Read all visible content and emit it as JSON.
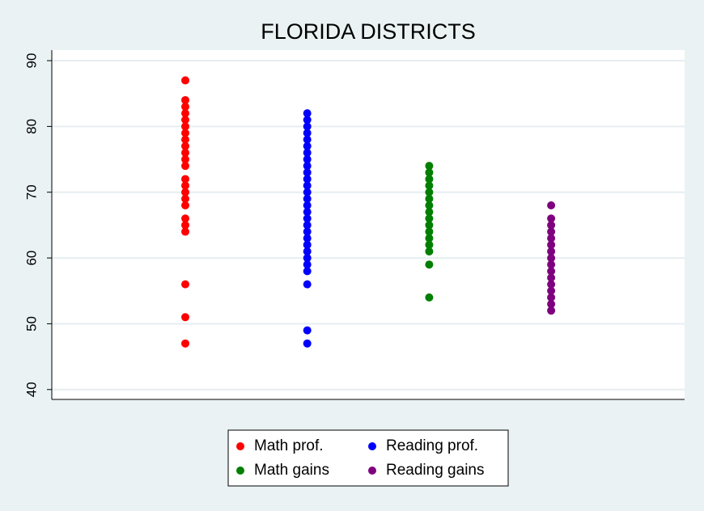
{
  "chart_data": {
    "type": "strip",
    "title": "FLORIDA DISTRICTS",
    "series": [
      {
        "name": "Math prof.",
        "color": "#ff0000",
        "values": [
          87,
          84,
          83,
          82,
          81,
          80,
          79,
          78,
          77,
          76,
          75,
          74,
          72,
          71,
          70,
          69,
          68,
          66,
          65,
          64,
          56,
          51,
          47
        ]
      },
      {
        "name": "Reading prof.",
        "color": "#0000ff",
        "values": [
          82,
          81,
          80,
          79,
          78,
          77,
          76,
          75,
          74,
          73,
          72,
          71,
          70,
          69,
          68,
          67,
          66,
          65,
          64,
          63,
          62,
          61,
          60,
          59,
          58,
          56,
          49,
          47
        ]
      },
      {
        "name": "Math gains",
        "color": "#007f00",
        "values": [
          74,
          73,
          72,
          71,
          70,
          69,
          68,
          67,
          66,
          65,
          64,
          63,
          62,
          61,
          59,
          54
        ]
      },
      {
        "name": "Reading gains",
        "color": "#7f007f",
        "values": [
          68,
          66,
          65,
          64,
          63,
          62,
          61,
          60,
          59,
          58,
          57,
          56,
          55,
          54,
          53,
          52
        ]
      }
    ],
    "ylim": [
      38.5,
      91.6
    ],
    "yticks": [
      40,
      50,
      60,
      70,
      80,
      90
    ],
    "grid": true,
    "legend": "bottom"
  }
}
